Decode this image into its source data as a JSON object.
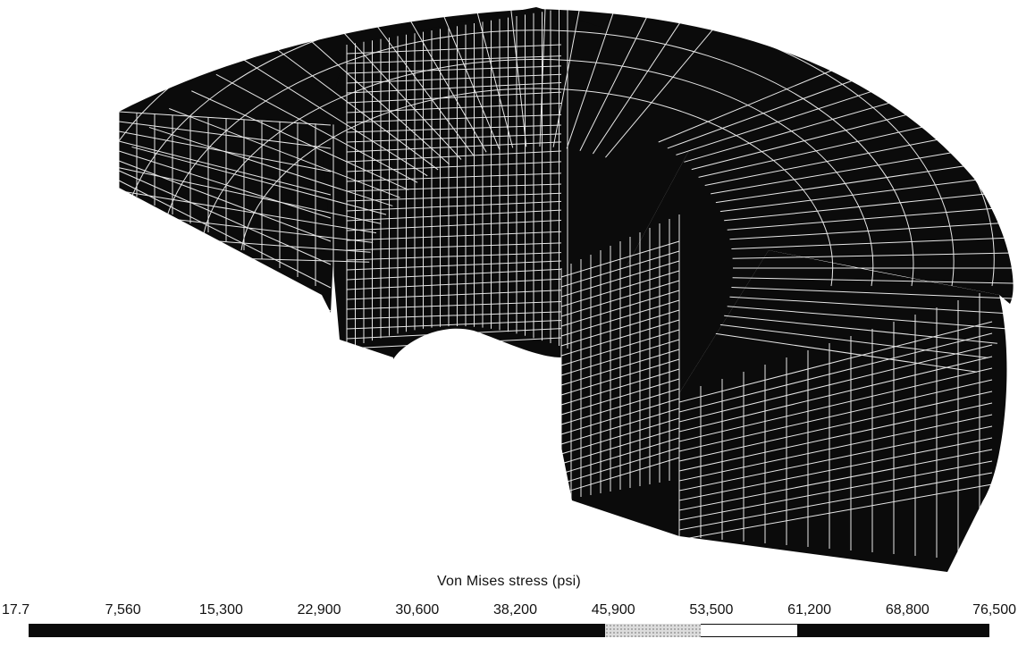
{
  "legend": {
    "title": "Von Mises stress (psi)",
    "ticks": [
      "17.7",
      "7,560",
      "15,300",
      "22,900",
      "30,600",
      "38,200",
      "45,900",
      "53,500",
      "61,200",
      "68,800",
      "76,500"
    ]
  },
  "colors": {
    "mesh_fill": "#0b0b0b",
    "mesh_lines": "#ffffff",
    "background": "#ffffff"
  }
}
